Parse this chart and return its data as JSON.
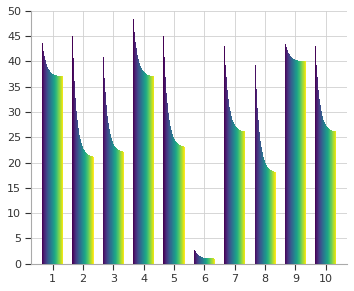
{
  "n_classes": 10,
  "n_iterations": 100,
  "ylim": [
    0,
    50
  ],
  "xlim": [
    0.3,
    10.7
  ],
  "yticks": [
    0,
    5,
    10,
    15,
    20,
    25,
    30,
    35,
    40,
    45,
    50
  ],
  "xticks": [
    1,
    2,
    3,
    4,
    5,
    6,
    7,
    8,
    9,
    10
  ],
  "start_values": [
    44,
    45,
    44,
    49,
    45,
    3,
    44,
    44,
    44,
    44
  ],
  "end_values": [
    37,
    21,
    22,
    37,
    23,
    1,
    26,
    18,
    40,
    26
  ],
  "decay_rate": 5.0,
  "bar_width": 0.7,
  "colormap": "viridis",
  "background_color": "#ffffff",
  "grid_color": "#d0d0d0"
}
